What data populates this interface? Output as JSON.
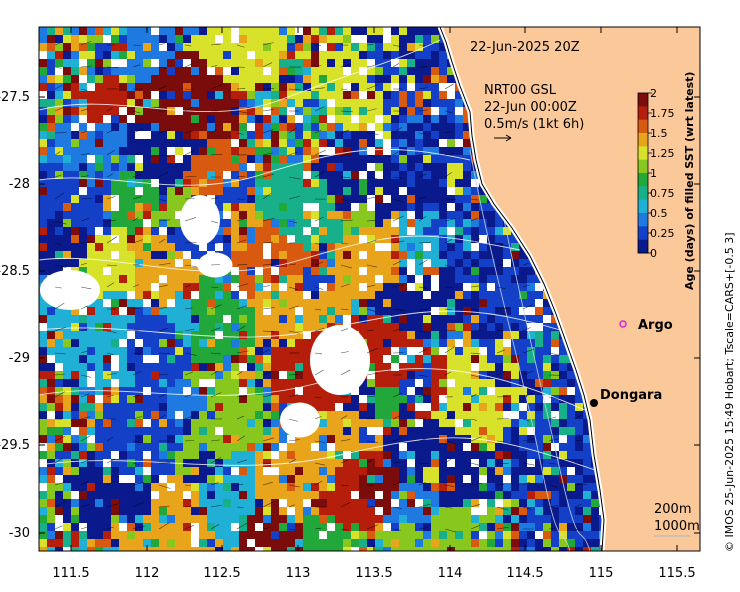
{
  "header": {
    "timestamp": "22-Jun-2025 20Z"
  },
  "current_legend": {
    "product": "NRT00 GSL",
    "time": "22-Jun 00:00Z",
    "scale": "0.5m/s (1kt 6h)"
  },
  "colorbar": {
    "title": "Age (days) of filled SST (wrt latest)",
    "ticks": [
      "2",
      "1.75",
      "1.5",
      "1.25",
      "1",
      "0.75",
      "0.5",
      "0.25",
      "0"
    ],
    "colors": [
      "#7a0c0c",
      "#b41e0a",
      "#d85a10",
      "#e8a41a",
      "#d8e22a",
      "#88c81e",
      "#22a83a",
      "#18b08a",
      "#20b0d6",
      "#1e7ae0",
      "#1440c8",
      "#0a1a8c"
    ]
  },
  "axes": {
    "x_ticks": [
      "111.5",
      "112",
      "112.5",
      "113",
      "113.5",
      "114",
      "114.5",
      "115",
      "115.5"
    ],
    "y_ticks": [
      "-27.5",
      "-28",
      "-28.5",
      "-29",
      "-29.5",
      "-30"
    ]
  },
  "places": {
    "argo": "Argo",
    "dongara": "Dongara"
  },
  "isobaths": {
    "shallow": "200m",
    "deep": "1000m"
  },
  "credit": "© IMOS 25-Jun-2025 15:49 Hobart; Tscale=CARS+[-0.5 3]",
  "colors": {
    "land": "#fbc89a",
    "coast": "#ffffff",
    "argo_marker": "#e020e0"
  }
}
